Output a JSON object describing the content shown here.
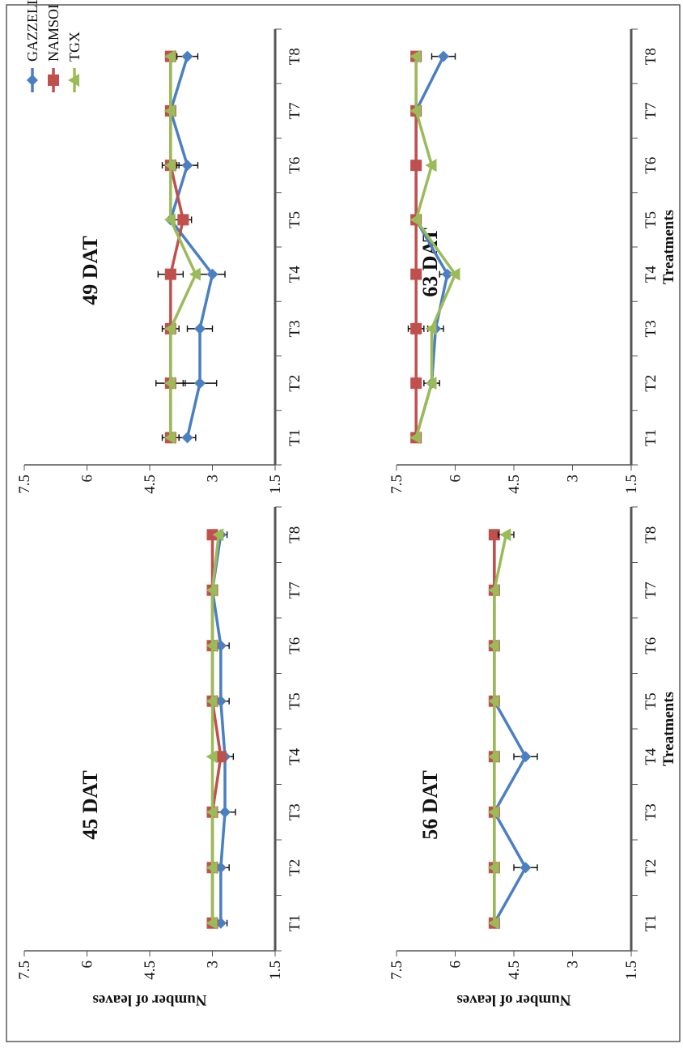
{
  "colors": {
    "GAZZELLE": "#4a7fc1",
    "NAMSOI": "#c0504d",
    "TGX": "#9bbb59",
    "axis": "#555555",
    "frame": "#333333"
  },
  "legend": {
    "position": "top-right",
    "entries": [
      "GAZZELLE",
      "NAMSOI",
      "TGX"
    ]
  },
  "y_axis_label": "Number of leaves",
  "x_axis_label": "Treatments",
  "chart_data": [
    {
      "type": "line",
      "title": "45 DAT",
      "categories": [
        "T1",
        "T2",
        "T3",
        "T4",
        "T5",
        "T6",
        "T7",
        "T8"
      ],
      "ylim": [
        1.5,
        7.5
      ],
      "yticks": [
        "7.5",
        "6",
        "4.5",
        "3",
        "1.5"
      ],
      "ylabel": "Number of leaves",
      "xlabel": "",
      "series": [
        {
          "name": "GAZZELLE",
          "values": [
            2.8,
            2.8,
            2.7,
            2.7,
            2.8,
            2.8,
            3.0,
            2.8
          ],
          "err": [
            0.15,
            0.2,
            0.25,
            0.2,
            0.2,
            0.2,
            0,
            0.15
          ]
        },
        {
          "name": "NAMSOI",
          "values": [
            3.0,
            3.0,
            3.0,
            2.8,
            3.0,
            3.0,
            3.0,
            3.0
          ],
          "err": [
            0,
            0,
            0,
            0,
            0,
            0,
            0,
            0
          ]
        },
        {
          "name": "TGX",
          "values": [
            3.0,
            3.0,
            3.0,
            3.0,
            3.0,
            3.0,
            3.0,
            2.85
          ],
          "err": [
            0,
            0,
            0,
            0,
            0,
            0,
            0,
            0
          ]
        }
      ]
    },
    {
      "type": "line",
      "title": "49 DAT",
      "categories": [
        "T1",
        "T2",
        "T3",
        "T4",
        "T5",
        "T6",
        "T7",
        "T8"
      ],
      "ylim": [
        1.5,
        7.5
      ],
      "yticks": [
        "7.5",
        "6",
        "4.5",
        "3",
        "1.5"
      ],
      "ylabel": "",
      "xlabel": "",
      "series": [
        {
          "name": "GAZZELLE",
          "values": [
            3.6,
            3.3,
            3.3,
            3.0,
            4.0,
            3.6,
            4.0,
            3.6
          ],
          "err": [
            0.2,
            0.4,
            0.3,
            0.3,
            0,
            0.25,
            0,
            0.25
          ]
        },
        {
          "name": "NAMSOI",
          "values": [
            4.0,
            4.0,
            4.0,
            4.0,
            3.7,
            4.0,
            4.0,
            4.0
          ],
          "err": [
            0.2,
            0.35,
            0.2,
            0.3,
            0.2,
            0.2,
            0,
            0
          ]
        },
        {
          "name": "TGX",
          "values": [
            4.0,
            4.0,
            4.0,
            3.4,
            4.0,
            4.0,
            4.0,
            4.0
          ],
          "err": [
            0,
            0,
            0,
            0,
            0,
            0,
            0,
            0
          ]
        }
      ]
    },
    {
      "type": "line",
      "title": "56 DAT",
      "categories": [
        "T1",
        "T2",
        "T3",
        "T4",
        "T5",
        "T6",
        "T7",
        "T8"
      ],
      "ylim": [
        1.5,
        7.5
      ],
      "yticks": [
        "7.5",
        "6",
        "4.5",
        "3",
        "1.5"
      ],
      "ylabel": "Number of leaves",
      "xlabel": "Treatments",
      "series": [
        {
          "name": "GAZZELLE",
          "values": [
            5.0,
            4.2,
            5.0,
            4.2,
            5.0,
            5.0,
            5.0,
            5.0
          ],
          "err": [
            0,
            0.3,
            0,
            0.3,
            0,
            0,
            0,
            0
          ]
        },
        {
          "name": "NAMSOI",
          "values": [
            5.0,
            5.0,
            5.0,
            5.0,
            5.0,
            5.0,
            5.0,
            5.0
          ],
          "err": [
            0,
            0,
            0,
            0,
            0,
            0,
            0,
            0
          ]
        },
        {
          "name": "TGX",
          "values": [
            5.0,
            5.0,
            5.0,
            5.0,
            5.0,
            5.0,
            5.0,
            4.7
          ],
          "err": [
            0,
            0,
            0,
            0,
            0,
            0,
            0,
            0.2
          ]
        }
      ]
    },
    {
      "type": "line",
      "title": "63 DAT",
      "categories": [
        "T1",
        "T2",
        "T3",
        "T4",
        "T5",
        "T6",
        "T7",
        "T8"
      ],
      "ylim": [
        1.5,
        7.5
      ],
      "yticks": [
        "7.5",
        "6",
        "4.5",
        "3",
        "1.5"
      ],
      "ylabel": "",
      "xlabel": "Treatments",
      "series": [
        {
          "name": "GAZZELLE",
          "values": [
            7.0,
            6.6,
            6.5,
            6.2,
            7.0,
            7.0,
            7.0,
            6.3
          ],
          "err": [
            0,
            0.2,
            0.2,
            0.2,
            0,
            0,
            0,
            0.3
          ]
        },
        {
          "name": "NAMSOI",
          "values": [
            7.0,
            7.0,
            7.0,
            7.0,
            7.0,
            7.0,
            7.0,
            7.0
          ],
          "err": [
            0,
            0,
            0.2,
            0,
            0,
            0,
            0,
            0
          ]
        },
        {
          "name": "TGX",
          "values": [
            7.0,
            6.6,
            6.6,
            6.0,
            7.0,
            6.6,
            7.0,
            7.0
          ],
          "err": [
            0,
            0,
            0,
            0,
            0,
            0,
            0,
            0
          ]
        }
      ]
    }
  ]
}
